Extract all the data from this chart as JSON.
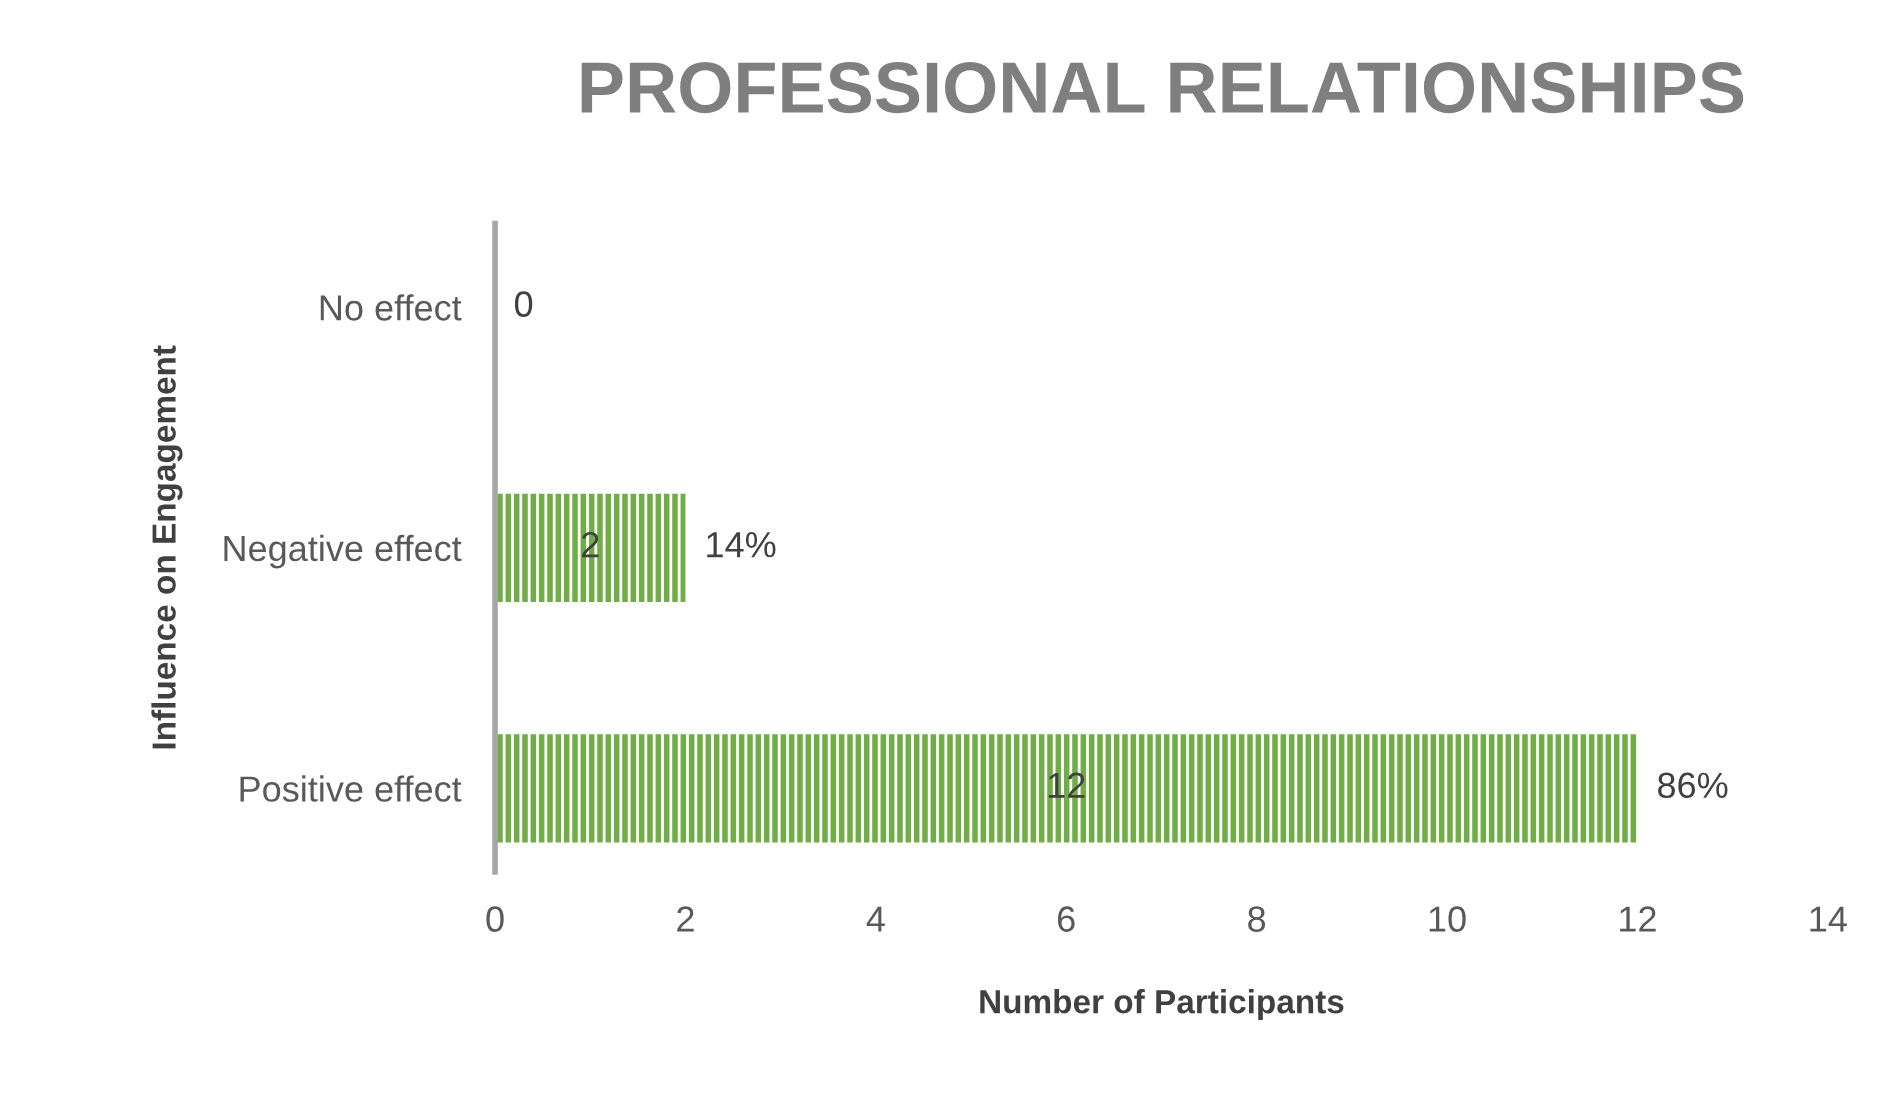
{
  "chart_data": {
    "type": "bar",
    "orientation": "horizontal",
    "title": "PROFESSIONAL RELATIONSHIPS",
    "xlabel": "Number of Participants",
    "ylabel": "Influence on Engagement",
    "categories": [
      "No effect",
      "Negative effect",
      "Positive effect"
    ],
    "values": [
      0,
      2,
      12
    ],
    "color": "#70ad47",
    "xlim": [
      0,
      14
    ],
    "xticks": [
      0,
      2,
      4,
      6,
      8,
      10,
      12,
      14
    ],
    "grid": false,
    "data_labels": true,
    "annotations": [
      {
        "text": "14%",
        "x": 2,
        "y": "Negative effect"
      },
      {
        "text": "86%",
        "x": 12,
        "y": "Positive effect"
      }
    ]
  }
}
